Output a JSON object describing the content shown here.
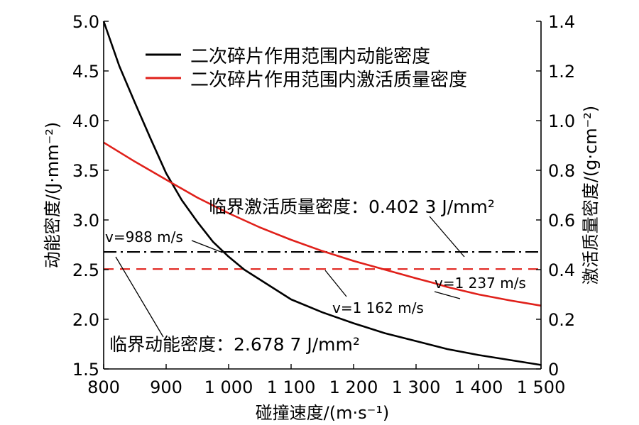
{
  "chart_data": {
    "type": "line",
    "xlabel": "碰撞速度/(m·s⁻¹)",
    "ylabel_left": "动能密度/(J·mm⁻²)",
    "ylabel_right": "激活质量密度/(g·cm⁻²)",
    "xlim": [
      800,
      1500
    ],
    "ylim_left": [
      1.5,
      5.0
    ],
    "ylim_right": [
      0,
      1.4
    ],
    "x_ticks": [
      800,
      900,
      1000,
      1100,
      1200,
      1300,
      1400,
      1500
    ],
    "x_tick_labels": [
      "800",
      "900",
      "1 000",
      "1 100",
      "1 200",
      "1 300",
      "1 400",
      "1 500"
    ],
    "y_left_ticks": [
      1.5,
      2.0,
      2.5,
      3.0,
      3.5,
      4.0,
      4.5,
      5.0
    ],
    "y_left_tick_labels": [
      "1.5",
      "2.0",
      "2.5",
      "3.0",
      "3.5",
      "4.0",
      "4.5",
      "5.0"
    ],
    "y_right_ticks": [
      0,
      0.2,
      0.4,
      0.6,
      0.8,
      1.0,
      1.2,
      1.4
    ],
    "y_right_tick_labels": [
      "0",
      "0.2",
      "0.4",
      "0.6",
      "0.8",
      "1.0",
      "1.2",
      "1.4"
    ],
    "grid": false,
    "legend_position": "top-center",
    "series": [
      {
        "name": "二次碎片作用范围内动能密度",
        "axis": "left",
        "color": "#000000",
        "x": [
          800,
          825,
          850,
          875,
          900,
          925,
          950,
          975,
          1000,
          1025,
          1050,
          1075,
          1100,
          1150,
          1200,
          1250,
          1300,
          1350,
          1400,
          1450,
          1500
        ],
        "y": [
          5.0,
          4.55,
          4.18,
          3.82,
          3.47,
          3.2,
          2.98,
          2.78,
          2.63,
          2.5,
          2.4,
          2.3,
          2.2,
          2.07,
          1.96,
          1.86,
          1.78,
          1.7,
          1.64,
          1.59,
          1.54
        ]
      },
      {
        "name": "二次碎片作用范围内激活质量密度",
        "axis": "right",
        "color": "#e0201a",
        "x": [
          800,
          850,
          900,
          950,
          1000,
          1050,
          1100,
          1150,
          1200,
          1250,
          1300,
          1330,
          1350,
          1400,
          1450,
          1500
        ],
        "y": [
          0.912,
          0.835,
          0.762,
          0.69,
          0.627,
          0.57,
          0.52,
          0.475,
          0.435,
          0.4,
          0.365,
          0.345,
          0.33,
          0.3,
          0.276,
          0.255
        ]
      }
    ],
    "reference_lines": [
      {
        "label": "临界激活质量密度：0.402 3 J/mm²",
        "axis": "left",
        "value": 2.678,
        "color": "#000000",
        "style": "dash-dot"
      },
      {
        "label": "临界动能密度：2.678 7 J/mm²",
        "axis": "right",
        "value": 0.4023,
        "color": "#e0201a",
        "style": "dashed"
      }
    ],
    "annotations": [
      {
        "text": "v=988 m/s",
        "x": 988
      },
      {
        "text": "v=1 162 m/s",
        "x": 1162
      },
      {
        "text": "v=1 237 m/s",
        "x": 1237
      }
    ]
  }
}
